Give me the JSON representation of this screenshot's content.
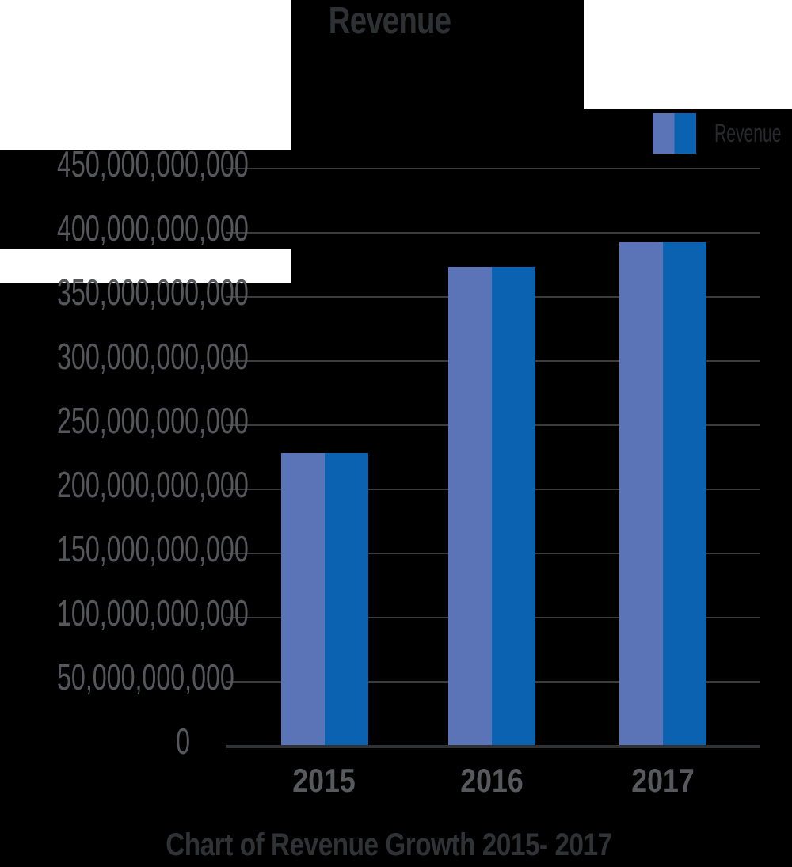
{
  "chart_data": {
    "type": "bar",
    "title": "Revenue",
    "categories": [
      "2015",
      "2016",
      "2017"
    ],
    "series": [
      {
        "name": "Revenue",
        "values": [
          228000000000,
          373000000000,
          392000000000
        ]
      }
    ],
    "xlabel": "",
    "ylabel": "",
    "ylim": [
      0,
      450000000000
    ],
    "ytick_step": 50000000000,
    "ytick_labels": [
      "450,000,000,000",
      "400,000,000,000",
      "350,000,000,000",
      "300,000,000,000",
      "250,000,000,000",
      "200,000,000,000",
      "150,000,000,000",
      "100,000,000,000",
      "50,000,000,000",
      "0"
    ],
    "grid": true,
    "legend": {
      "entries": [
        "Revenue"
      ],
      "position": "top-right"
    },
    "caption": "Chart of Revenue Growth 2015- 2017"
  },
  "colors": {
    "background": "#000000",
    "panel_white": "#ffffff",
    "bar_left_half": "#5b73b7",
    "bar_right_half": "#0a62b0",
    "gridline": "#3a3c3e",
    "axis_line": "#2f3133",
    "tick_label": "#55575a",
    "category_label": "#57595c",
    "title": "#2e3134",
    "caption": "#303336",
    "legend_text": "#27292c"
  }
}
